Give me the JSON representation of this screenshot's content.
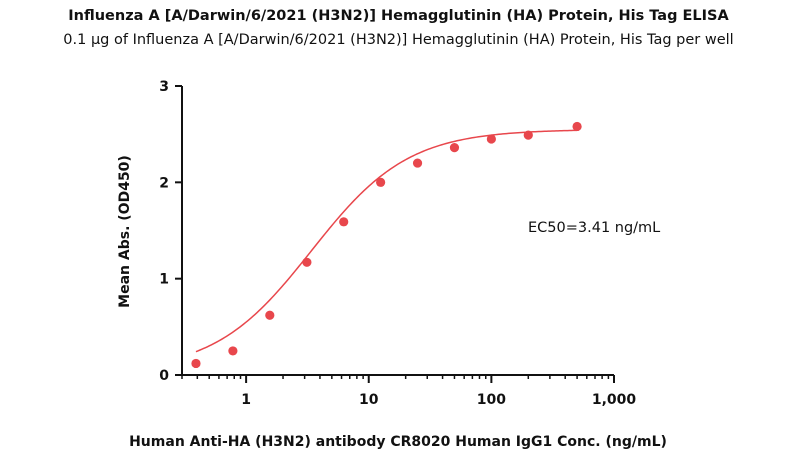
{
  "chart_data": {
    "type": "scatter",
    "title": "Influenza A [A/Darwin/6/2021 (H3N2)] Hemagglutinin (HA) Protein, His Tag ELISA",
    "subtitle": "0.1 μg of Influenza A [A/Darwin/6/2021 (H3N2)] Hemagglutinin (HA) Protein, His Tag per well",
    "xlabel": "Human Anti-HA (H3N2) antibody CR8020 Human IgG1 Conc. (ng/mL)",
    "ylabel": "Mean Abs. (OD450)",
    "xscale": "log10",
    "xlim": [
      0.3,
      1000
    ],
    "ylim": [
      0,
      3
    ],
    "xticks": [
      1,
      10,
      100,
      1000
    ],
    "xtick_labels": [
      "1",
      "10",
      "100",
      "1,000"
    ],
    "yticks": [
      0,
      1,
      2,
      3
    ],
    "ytick_labels": [
      "0",
      "1",
      "2",
      "3"
    ],
    "series": [
      {
        "name": "Mean Abs. (OD450)",
        "color": "#e8474c",
        "x": [
          0.39,
          0.78,
          1.56,
          3.13,
          6.25,
          12.5,
          25,
          50,
          100,
          200,
          500
        ],
        "y": [
          0.12,
          0.25,
          0.62,
          1.17,
          1.59,
          2.0,
          2.2,
          2.36,
          2.45,
          2.49,
          2.58
        ]
      }
    ],
    "fit": {
      "model": "4PL",
      "bottom": 0.03,
      "top": 2.55,
      "ec50": 3.41,
      "hill": 1.1,
      "color": "#e8474c"
    },
    "annotation": "EC50=3.41 ng/mL"
  }
}
